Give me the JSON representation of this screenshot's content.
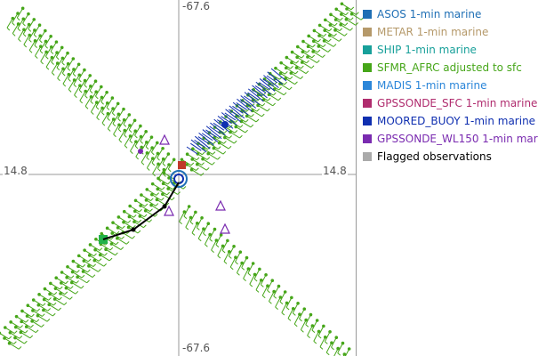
{
  "chart_data": {
    "type": "scatter",
    "title": "",
    "axis_tick_labels": {
      "top": "-67.6",
      "bottom": "-67.6",
      "left": "14.8",
      "right": "14.8"
    },
    "grid": true,
    "legend_placement": "right",
    "series": [
      {
        "name": "ASOS 1-min marine",
        "color": "#1f6fb5",
        "points": []
      },
      {
        "name": "METAR 1-min marine",
        "color": "#b5996a",
        "points": []
      },
      {
        "name": "SHIP 1-min marine",
        "color": "#18a09a",
        "points": []
      },
      {
        "name": "SFMR_AFRC adjusted to sfc",
        "color": "#46a619",
        "points": []
      },
      {
        "name": "MADIS 1-min marine",
        "color": "#2b86d9",
        "points": []
      },
      {
        "name": "GPSSONDE_SFC 1-min marine",
        "color": "#b02c6e",
        "points": []
      },
      {
        "name": "MOORED_BUOY 1-min marine",
        "color": "#0f2fb0",
        "points": []
      },
      {
        "name": "GPSSONDE_WL150 1-min mar",
        "color": "#7a2bb0",
        "points": []
      },
      {
        "name": "Flagged observations",
        "color": "#aaaaaa",
        "points": []
      }
    ]
  }
}
